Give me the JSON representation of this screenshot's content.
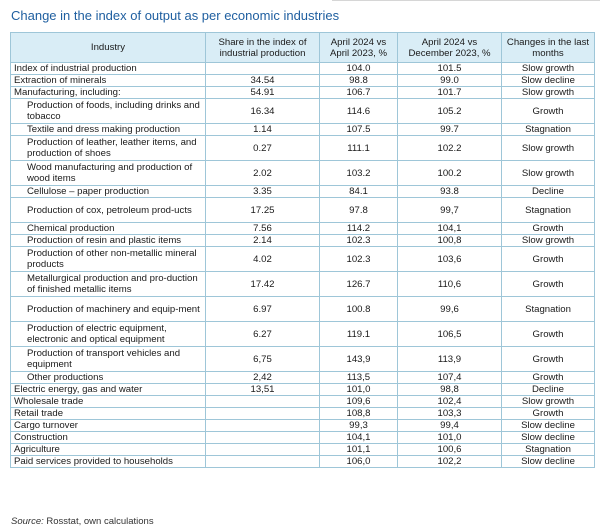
{
  "title": "Change in the index of output as per economic industries",
  "columns": [
    "Industry",
    "Share in the index of industrial production",
    "April 2024 vs April 2023, %",
    "April 2024 vs December 2023, %",
    "Changes in the last months"
  ],
  "rows": [
    {
      "industry": "Index of industrial production",
      "share": "",
      "apr_apr": "104.0",
      "apr_dec": "101.5",
      "change": "Slow growth",
      "sub": false,
      "tall": false
    },
    {
      "industry": "Extraction of minerals",
      "share": "34.54",
      "apr_apr": "98.8",
      "apr_dec": "99.0",
      "change": "Slow decline",
      "sub": false,
      "tall": false
    },
    {
      "industry": "Manufacturing, including:",
      "share": "54.91",
      "apr_apr": "106.7",
      "apr_dec": "101.7",
      "change": "Slow growth",
      "sub": false,
      "tall": false
    },
    {
      "industry": "Production of foods, including drinks and tobacco",
      "share": "16.34",
      "apr_apr": "114.6",
      "apr_dec": "105.2",
      "change": "Growth",
      "sub": true,
      "tall": true
    },
    {
      "industry": "Textile and dress making production",
      "share": "1.14",
      "apr_apr": "107.5",
      "apr_dec": "99.7",
      "change": "Stagnation",
      "sub": true,
      "tall": false
    },
    {
      "industry": "Production of leather, leather items, and production of shoes",
      "share": "0.27",
      "apr_apr": "111.1",
      "apr_dec": "102.2",
      "change": "Slow growth",
      "sub": true,
      "tall": true
    },
    {
      "industry": "Wood manufacturing and production of wood items",
      "share": "2.02",
      "apr_apr": "103.2",
      "apr_dec": "100.2",
      "change": "Slow growth",
      "sub": true,
      "tall": true
    },
    {
      "industry": "Cellulose – paper production",
      "share": "3.35",
      "apr_apr": "84.1",
      "apr_dec": "93.8",
      "change": "Decline",
      "sub": true,
      "tall": false
    },
    {
      "industry": "Production of cox, petroleum prod-ucts",
      "share": "17.25",
      "apr_apr": "97.8",
      "apr_dec": "99,7",
      "change": "Stagnation",
      "sub": true,
      "tall": true
    },
    {
      "industry": "Chemical production",
      "share": "7.56",
      "apr_apr": "114.2",
      "apr_dec": "104,1",
      "change": "Growth",
      "sub": true,
      "tall": false
    },
    {
      "industry": "Production of resin and plastic items",
      "share": "2.14",
      "apr_apr": "102.3",
      "apr_dec": "100,8",
      "change": "Slow growth",
      "sub": true,
      "tall": false
    },
    {
      "industry": "Production of other non-metallic mineral products",
      "share": "4.02",
      "apr_apr": "102.3",
      "apr_dec": "103,6",
      "change": "Growth",
      "sub": true,
      "tall": true
    },
    {
      "industry": "Metallurgical production and pro-duction of finished metallic items",
      "share": "17.42",
      "apr_apr": "126.7",
      "apr_dec": "110,6",
      "change": "Growth",
      "sub": true,
      "tall": true
    },
    {
      "industry": "Production of machinery and equip-ment",
      "share": "6.97",
      "apr_apr": "100.8",
      "apr_dec": "99,6",
      "change": "Stagnation",
      "sub": true,
      "tall": true
    },
    {
      "industry": "Production of electric equipment, electronic and optical equipment",
      "share": "6.27",
      "apr_apr": "119.1",
      "apr_dec": "106,5",
      "change": "Growth",
      "sub": true,
      "tall": true
    },
    {
      "industry": "Production of transport vehicles and equipment",
      "share": "6,75",
      "apr_apr": "143,9",
      "apr_dec": "113,9",
      "change": "Growth",
      "sub": true,
      "tall": true
    },
    {
      "industry": "Other productions",
      "share": "2,42",
      "apr_apr": "113,5",
      "apr_dec": "107,4",
      "change": "Growth",
      "sub": true,
      "tall": false
    },
    {
      "industry": "Electric energy, gas and water",
      "share": "13,51",
      "apr_apr": "101,0",
      "apr_dec": "98,8",
      "change": "Decline",
      "sub": false,
      "tall": false
    },
    {
      "industry": "Wholesale trade",
      "share": "",
      "apr_apr": "109,6",
      "apr_dec": "102,4",
      "change": "Slow growth",
      "sub": false,
      "tall": false
    },
    {
      "industry": "Retail trade",
      "share": "",
      "apr_apr": "108,8",
      "apr_dec": "103,3",
      "change": "Growth",
      "sub": false,
      "tall": false
    },
    {
      "industry": "Cargo turnover",
      "share": "",
      "apr_apr": "99,3",
      "apr_dec": "99,4",
      "change": "Slow decline",
      "sub": false,
      "tall": false
    },
    {
      "industry": "Construction",
      "share": "",
      "apr_apr": "104,1",
      "apr_dec": "101,0",
      "change": "Slow decline",
      "sub": false,
      "tall": false
    },
    {
      "industry": "Agriculture",
      "share": "",
      "apr_apr": "101,1",
      "apr_dec": "100,6",
      "change": "Stagnation",
      "sub": false,
      "tall": false
    },
    {
      "industry": "Paid services provided to households",
      "share": "",
      "apr_apr": "106,0",
      "apr_dec": "102,2",
      "change": "Slow decline",
      "sub": false,
      "tall": false
    }
  ],
  "source": {
    "label": "Source:",
    "text": "Rosstat, own calculations"
  }
}
